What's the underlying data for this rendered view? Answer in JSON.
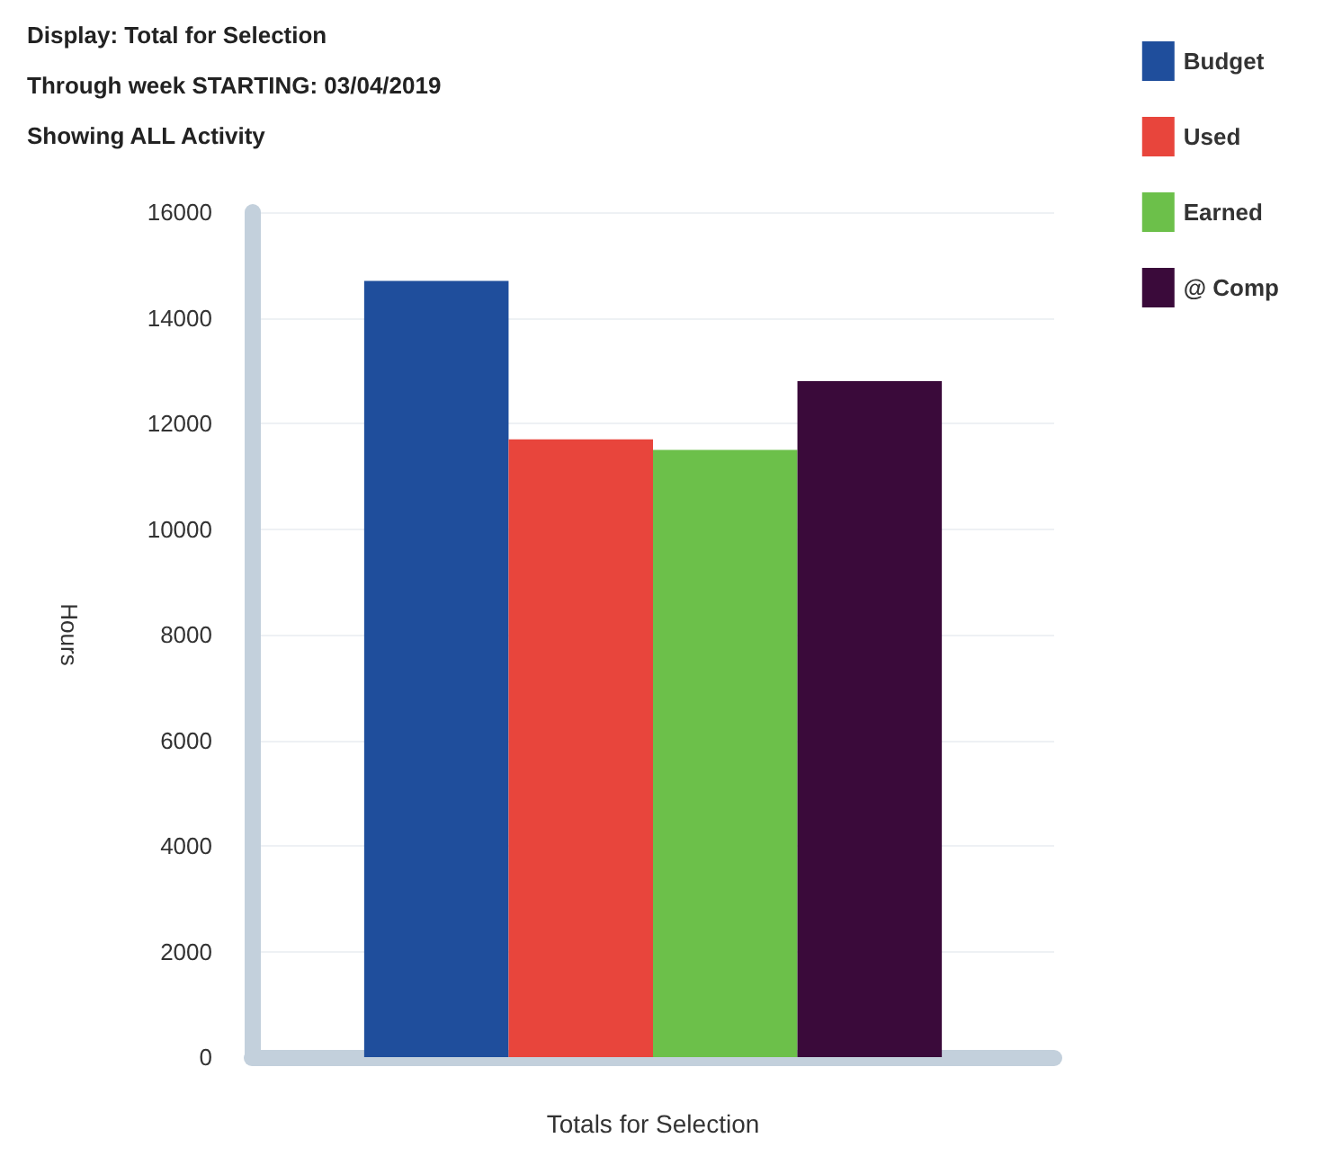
{
  "chart_data": {
    "type": "bar",
    "title": "Display: Total for Selection",
    "subtitle": "Through week STARTING: 03/04/2019",
    "annotations": [
      "Showing ALL Activity"
    ],
    "ylabel": "Hours",
    "categories": [
      "Totals for Selection"
    ],
    "series": [
      {
        "name": "Budget",
        "color": "#1f4e9c",
        "values": [
          14700
        ]
      },
      {
        "name": "Used",
        "color": "#e8453c",
        "values": [
          11700
        ]
      },
      {
        "name": "Earned",
        "color": "#6cc04a",
        "values": [
          11500
        ]
      },
      {
        "name": "@ Comp",
        "color": "#3a0a3a",
        "values": [
          12800
        ]
      }
    ],
    "ylim": [
      0,
      16000
    ],
    "yticks": [
      0,
      2000,
      4000,
      6000,
      8000,
      10000,
      12000,
      14000,
      16000
    ],
    "grid": "y",
    "legend": "top right"
  }
}
